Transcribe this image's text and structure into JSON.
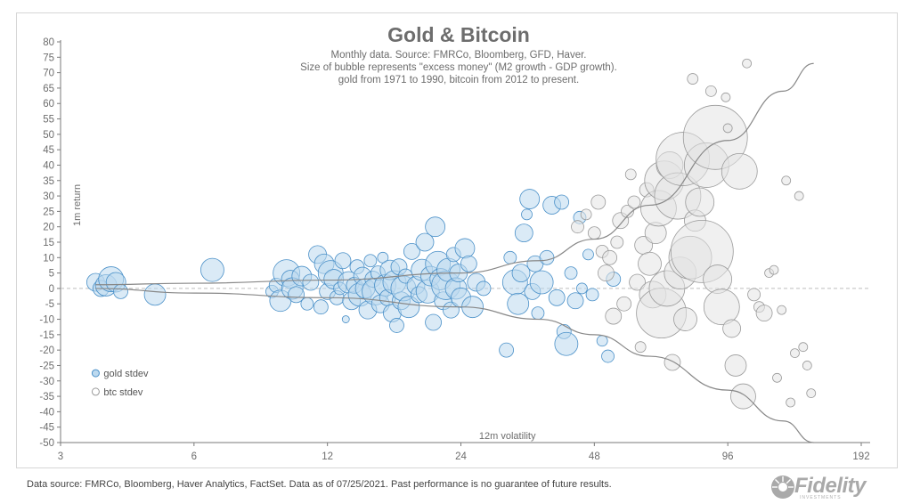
{
  "source_note": "Data source: FMRCo, Bloomberg, Haver Analytics, FactSet. Data as of 07/25/2021. Past performance is no guarantee of future results.",
  "logo": {
    "name": "Fidelity",
    "tagline": "INVESTMENTS",
    "color": "#a9a9a9"
  },
  "chart_data": {
    "type": "scatter",
    "title": "Gold & Bitcoin",
    "subtitle": [
      "Monthly data.  Source: FMRCo, Bloomberg, GFD, Haver.",
      "Size of bubble represents \"excess money\" (M2 growth - GDP growth).",
      "gold from 1971 to 1990, bitcoin from 2012 to present."
    ],
    "xlabel": "12m volatility",
    "ylabel": "1m return",
    "xscale": "log2",
    "xlim": [
      3,
      192
    ],
    "ylim": [
      -50,
      80
    ],
    "xticks": [
      "3",
      "6",
      "12",
      "24",
      "48",
      "96",
      "192"
    ],
    "yticks": [
      "80",
      "75",
      "70",
      "65",
      "60",
      "55",
      "50",
      "45",
      "40",
      "35",
      "30",
      "25",
      "20",
      "15",
      "10",
      "5",
      "0",
      "-5",
      "-10",
      "-15",
      "-20",
      "-25",
      "-30",
      "-35",
      "-40",
      "-45",
      "-50"
    ],
    "zero_line": {
      "y": 0,
      "style": "dashed"
    },
    "legend": [
      {
        "name": "gold stdev",
        "color": "#6baed6"
      },
      {
        "name": "btc stdev",
        "color": "#a0a0a0"
      }
    ],
    "colors": {
      "gold_fill": "#bcd9ef",
      "gold_stroke": "#4a90c8",
      "btc_fill": "#e3e3e3",
      "btc_stroke": "#9a9a9a",
      "envelope": "#888888",
      "axis": "#7a7a7a"
    },
    "envelope": {
      "upper": [
        [
          3.6,
          1.2
        ],
        [
          6,
          1.7
        ],
        [
          12,
          2.7
        ],
        [
          24,
          5
        ],
        [
          36,
          9
        ],
        [
          48,
          16
        ],
        [
          64,
          27
        ],
        [
          96,
          48
        ],
        [
          128,
          64
        ],
        [
          150,
          73
        ]
      ],
      "lower": [
        [
          3.6,
          0
        ],
        [
          6,
          -1.5
        ],
        [
          12,
          -3
        ],
        [
          24,
          -6
        ],
        [
          36,
          -10
        ],
        [
          48,
          -15
        ],
        [
          64,
          -22
        ],
        [
          96,
          -33
        ],
        [
          128,
          -43
        ],
        [
          150,
          -50
        ]
      ]
    },
    "series": [
      {
        "name": "gold stdev",
        "points": [
          [
            3.6,
            2,
            10
          ],
          [
            3.7,
            0,
            9
          ],
          [
            3.8,
            1,
            12
          ],
          [
            3.9,
            3,
            14
          ],
          [
            4.0,
            2,
            11
          ],
          [
            4.1,
            -1,
            8
          ],
          [
            4.9,
            -2,
            12
          ],
          [
            6.6,
            6,
            13
          ],
          [
            9.0,
            -1,
            7
          ],
          [
            9.2,
            1,
            8
          ],
          [
            9.4,
            -4,
            12
          ],
          [
            9.7,
            5,
            15
          ],
          [
            9.9,
            3,
            10
          ],
          [
            10.0,
            0,
            12
          ],
          [
            10.2,
            -2,
            9
          ],
          [
            10.5,
            4,
            11
          ],
          [
            10.8,
            -5,
            7
          ],
          [
            11.0,
            2,
            9
          ],
          [
            11.4,
            11,
            10
          ],
          [
            11.6,
            -6,
            8
          ],
          [
            11.8,
            8,
            11
          ],
          [
            12.0,
            -1,
            9
          ],
          [
            12.2,
            5,
            14
          ],
          [
            12.4,
            3,
            11
          ],
          [
            12.6,
            -3,
            8
          ],
          [
            12.8,
            0,
            7
          ],
          [
            13.0,
            9,
            9
          ],
          [
            13.2,
            -10,
            4
          ],
          [
            13.4,
            2,
            12
          ],
          [
            13.6,
            -4,
            10
          ],
          [
            13.8,
            1,
            9
          ],
          [
            14.0,
            7,
            8
          ],
          [
            14.2,
            -2,
            13
          ],
          [
            14.4,
            4,
            10
          ],
          [
            14.6,
            0,
            11
          ],
          [
            14.8,
            -7,
            10
          ],
          [
            15.0,
            9,
            7
          ],
          [
            15.2,
            3,
            9
          ],
          [
            15.4,
            -1,
            15
          ],
          [
            15.6,
            5,
            8
          ],
          [
            15.8,
            -5,
            10
          ],
          [
            16.0,
            10,
            6
          ],
          [
            16.2,
            1,
            12
          ],
          [
            16.4,
            -3,
            9
          ],
          [
            16.6,
            6,
            11
          ],
          [
            16.8,
            -8,
            10
          ],
          [
            17.0,
            2,
            13
          ],
          [
            17.2,
            -12,
            8
          ],
          [
            17.4,
            7,
            9
          ],
          [
            17.6,
            -4,
            10
          ],
          [
            17.8,
            0,
            14
          ],
          [
            18.0,
            4,
            8
          ],
          [
            18.3,
            -6,
            12
          ],
          [
            18.6,
            12,
            9
          ],
          [
            19.0,
            1,
            10
          ],
          [
            19.3,
            -2,
            9
          ],
          [
            19.6,
            6,
            12
          ],
          [
            19.9,
            15,
            10
          ],
          [
            20.2,
            -1,
            13
          ],
          [
            20.5,
            4,
            11
          ],
          [
            20.8,
            -11,
            9
          ],
          [
            21.0,
            20,
            11
          ],
          [
            21.3,
            8,
            14
          ],
          [
            21.6,
            3,
            12
          ],
          [
            21.9,
            -4,
            10
          ],
          [
            22.2,
            1,
            16
          ],
          [
            22.5,
            6,
            13
          ],
          [
            22.8,
            -7,
            9
          ],
          [
            23.1,
            11,
            8
          ],
          [
            23.4,
            0,
            12
          ],
          [
            23.7,
            5,
            10
          ],
          [
            24.0,
            -3,
            11
          ],
          [
            24.5,
            13,
            11
          ],
          [
            25.0,
            8,
            9
          ],
          [
            25.5,
            -6,
            12
          ],
          [
            26.0,
            2,
            10
          ],
          [
            27.0,
            0,
            8
          ],
          [
            30.4,
            -20,
            8
          ],
          [
            31.0,
            10,
            7
          ],
          [
            31.8,
            2,
            14
          ],
          [
            32.3,
            -5,
            12
          ],
          [
            32.8,
            5,
            10
          ],
          [
            33.3,
            18,
            10
          ],
          [
            33.8,
            24,
            6
          ],
          [
            34.3,
            29,
            11
          ],
          [
            34.8,
            -1,
            9
          ],
          [
            35.3,
            8,
            9
          ],
          [
            35.8,
            -8,
            7
          ],
          [
            36.5,
            2,
            13
          ],
          [
            37.5,
            10,
            8
          ],
          [
            38.5,
            27,
            10
          ],
          [
            39.5,
            -3,
            9
          ],
          [
            40.5,
            28,
            8
          ],
          [
            41.0,
            -14,
            8
          ],
          [
            41.5,
            -18,
            13
          ],
          [
            42.5,
            5,
            7
          ],
          [
            43.5,
            -4,
            9
          ],
          [
            44.5,
            23,
            7
          ],
          [
            45.0,
            0,
            6
          ],
          [
            46.5,
            11,
            6
          ],
          [
            47.5,
            -2,
            7
          ],
          [
            50.0,
            -17,
            6
          ],
          [
            51.5,
            -22,
            7
          ],
          [
            53.0,
            3,
            8
          ]
        ]
      },
      {
        "name": "btc stdev",
        "points": [
          [
            44,
            20,
            7
          ],
          [
            46,
            24,
            6
          ],
          [
            48,
            18,
            7
          ],
          [
            49,
            28,
            8
          ],
          [
            50,
            12,
            7
          ],
          [
            51,
            5,
            9
          ],
          [
            52,
            10,
            8
          ],
          [
            53,
            -9,
            9
          ],
          [
            54,
            15,
            7
          ],
          [
            55,
            22,
            9
          ],
          [
            56,
            -5,
            8
          ],
          [
            57,
            25,
            7
          ],
          [
            58,
            37,
            6
          ],
          [
            59,
            28,
            7
          ],
          [
            60,
            2,
            9
          ],
          [
            61,
            -19,
            6
          ],
          [
            62,
            14,
            10
          ],
          [
            63,
            32,
            8
          ],
          [
            64,
            8,
            13
          ],
          [
            65,
            -2,
            15
          ],
          [
            66,
            18,
            12
          ],
          [
            67,
            26,
            20
          ],
          [
            68,
            -8,
            28
          ],
          [
            69,
            35,
            22
          ],
          [
            70,
            0,
            20
          ],
          [
            71,
            40,
            15
          ],
          [
            72,
            -24,
            9
          ],
          [
            74,
            30,
            26
          ],
          [
            75,
            5,
            18
          ],
          [
            76,
            42,
            30
          ],
          [
            77,
            -10,
            13
          ],
          [
            79,
            10,
            24
          ],
          [
            80,
            68,
            6
          ],
          [
            81,
            22,
            12
          ],
          [
            83,
            28,
            16
          ],
          [
            84,
            12,
            35
          ],
          [
            86,
            40,
            25
          ],
          [
            88,
            64,
            6
          ],
          [
            90,
            49,
            36
          ],
          [
            91,
            3,
            16
          ],
          [
            93,
            -6,
            20
          ],
          [
            95,
            62,
            5
          ],
          [
            96,
            52,
            5
          ],
          [
            98,
            -13,
            10
          ],
          [
            100,
            -25,
            12
          ],
          [
            102,
            38,
            20
          ],
          [
            104,
            -35,
            14
          ],
          [
            106,
            73,
            5
          ],
          [
            110,
            -2,
            7
          ],
          [
            113,
            -6,
            6
          ],
          [
            116,
            -8,
            9
          ],
          [
            119,
            5,
            5
          ],
          [
            122,
            6,
            5
          ],
          [
            124,
            -29,
            5
          ],
          [
            127,
            -7,
            5
          ],
          [
            130,
            35,
            5
          ],
          [
            133,
            -37,
            5
          ],
          [
            136,
            -21,
            5
          ],
          [
            139,
            30,
            5
          ],
          [
            142,
            -19,
            5
          ],
          [
            145,
            -25,
            5
          ],
          [
            148,
            -34,
            5
          ]
        ]
      }
    ]
  }
}
